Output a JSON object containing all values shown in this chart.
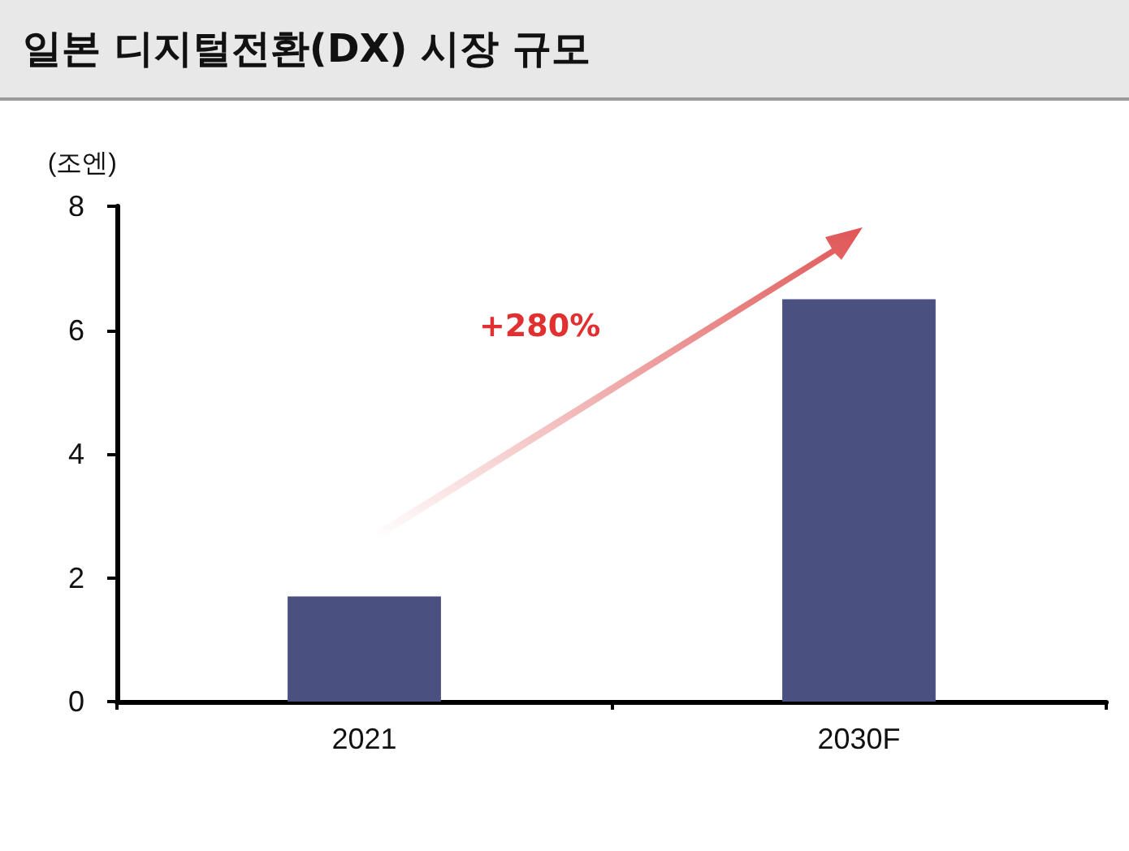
{
  "chart_data": {
    "type": "bar",
    "title": "일본 디지털전환(DX) 시장 규모",
    "ylabel": "(조엔)",
    "categories": [
      "2021",
      "2030F"
    ],
    "values": [
      1.7,
      6.5
    ],
    "color": "#4a5080",
    "ylim": [
      0,
      8
    ],
    "yticks": [
      0,
      2,
      4,
      6,
      8
    ],
    "grid": false,
    "annotations": [
      "+280%"
    ]
  }
}
